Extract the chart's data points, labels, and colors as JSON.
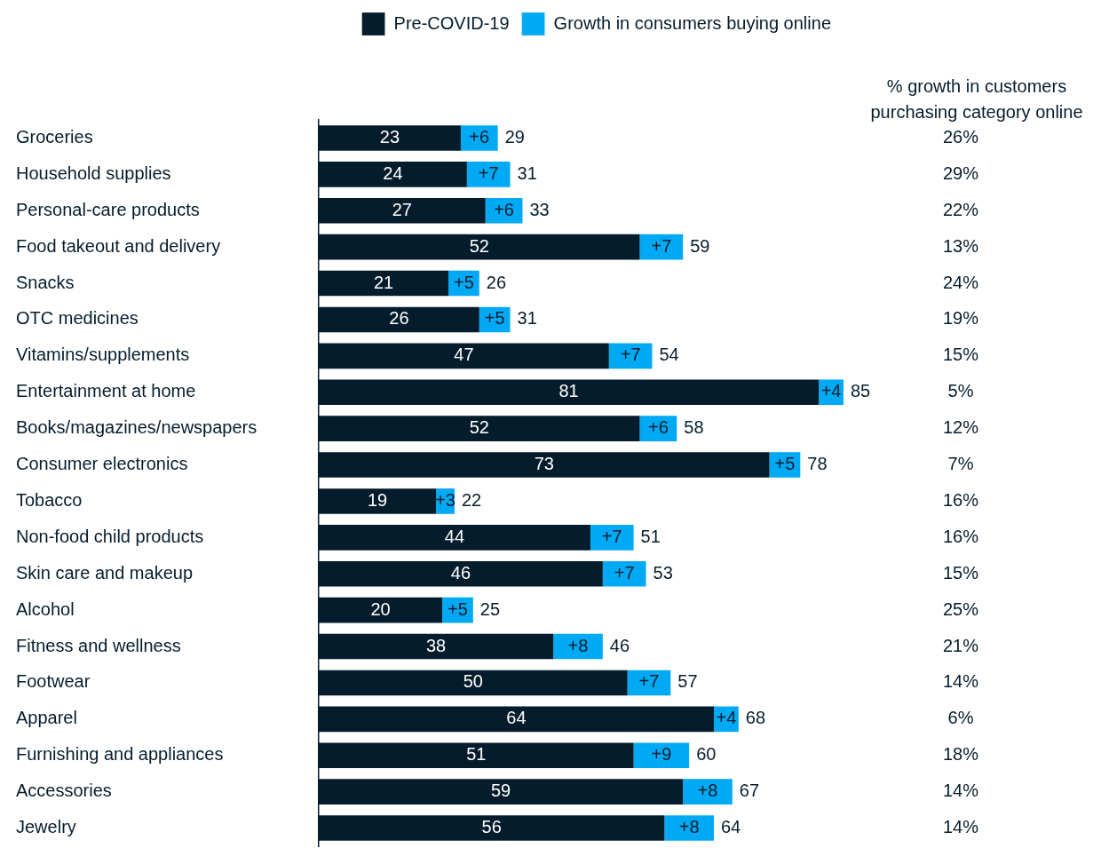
{
  "chart_data": {
    "type": "bar",
    "orientation": "horizontal",
    "stacked": true,
    "legend": "top right",
    "categories": [
      "Groceries",
      "Household supplies",
      "Personal-care products",
      "Food takeout and delivery",
      "Snacks",
      "OTC medicines",
      "Vitamins/supplements",
      "Entertainment at home",
      "Books/magazines/newspapers",
      "Consumer electronics",
      "Tobacco",
      "Non-food child products",
      "Skin care and makeup",
      "Alcohol",
      "Fitness and wellness",
      "Footwear",
      "Apparel",
      "Furnishing and appliances",
      "Accessories",
      "Jewelry"
    ],
    "series": [
      {
        "name": "Pre-COVID-19",
        "color": "#051c2c",
        "values": [
          23,
          24,
          27,
          52,
          21,
          26,
          47,
          81,
          52,
          73,
          19,
          44,
          46,
          20,
          38,
          50,
          64,
          51,
          59,
          56
        ],
        "value_labels": [
          "23",
          "24",
          "27",
          "52",
          "21",
          "26",
          "47",
          "81",
          "52",
          "73",
          "19",
          "44",
          "46",
          "20",
          "38",
          "50",
          "64",
          "51",
          "59",
          "56"
        ]
      },
      {
        "name": "Growth in consumers buying online",
        "color": "#00a9f4",
        "values": [
          6,
          7,
          6,
          7,
          5,
          5,
          7,
          4,
          6,
          5,
          3,
          7,
          7,
          5,
          8,
          7,
          4,
          9,
          8,
          8
        ],
        "value_labels": [
          "+6",
          "+7",
          "+6",
          "+7",
          "+5",
          "+5",
          "+7",
          "+4",
          "+6",
          "+5",
          "+3",
          "+7",
          "+7",
          "+5",
          "+8",
          "+7",
          "+4",
          "+9",
          "+8",
          "+8"
        ]
      }
    ],
    "totals": [
      "29",
      "31",
      "33",
      "59",
      "26",
      "31",
      "54",
      "85",
      "58",
      "78",
      "22",
      "51",
      "53",
      "25",
      "46",
      "57",
      "68",
      "60",
      "67",
      "64"
    ],
    "annotations": [
      "% growth in customers purchasing category online",
      "26%",
      "29%",
      "22%",
      "13%",
      "24%",
      "19%",
      "15%",
      "5%",
      "12%",
      "7%",
      "16%",
      "16%",
      "15%",
      "25%",
      "21%",
      "14%",
      "6%",
      "18%",
      "14%",
      "14%"
    ]
  }
}
